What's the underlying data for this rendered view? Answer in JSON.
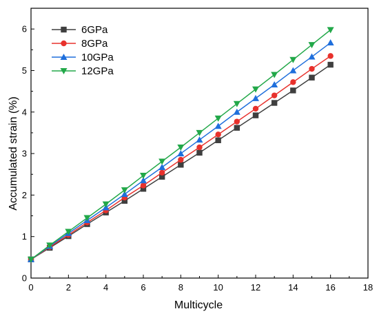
{
  "chart_data": {
    "type": "line",
    "xlabel": "Multicycle",
    "ylabel": "Accumulated strain (%)",
    "xlim": [
      0,
      18
    ],
    "ylim": [
      0,
      6.5
    ],
    "xticks": [
      0,
      2,
      4,
      6,
      8,
      10,
      12,
      14,
      16,
      18
    ],
    "yticks": [
      0,
      1,
      2,
      3,
      4,
      5,
      6
    ],
    "grid": false,
    "legend_position": "top-left",
    "x": [
      0,
      1,
      2,
      3,
      4,
      5,
      6,
      7,
      8,
      9,
      10,
      11,
      12,
      13,
      14,
      15,
      16
    ],
    "series": [
      {
        "name": "6GPa",
        "marker": "square",
        "color": "#3f3f3f",
        "values": [
          0.45,
          0.73,
          1.01,
          1.3,
          1.58,
          1.86,
          2.15,
          2.44,
          2.73,
          3.02,
          3.32,
          3.62,
          3.92,
          4.22,
          4.52,
          4.83,
          5.14
        ]
      },
      {
        "name": "8GPa",
        "marker": "circle",
        "color": "#e8312c",
        "values": [
          0.45,
          0.75,
          1.04,
          1.34,
          1.63,
          1.94,
          2.23,
          2.54,
          2.85,
          3.15,
          3.46,
          3.77,
          4.08,
          4.4,
          4.72,
          5.04,
          5.35
        ]
      },
      {
        "name": "10GPa",
        "marker": "triangle-up",
        "color": "#1f6fdc",
        "values": [
          0.45,
          0.77,
          1.08,
          1.39,
          1.7,
          2.02,
          2.35,
          2.67,
          3.0,
          3.33,
          3.66,
          4.0,
          4.33,
          4.66,
          5.0,
          5.33,
          5.67
        ]
      },
      {
        "name": "12GPa",
        "marker": "triangle-down",
        "color": "#22a849",
        "values": [
          0.45,
          0.79,
          1.12,
          1.45,
          1.78,
          2.12,
          2.47,
          2.81,
          3.15,
          3.5,
          3.85,
          4.2,
          4.55,
          4.9,
          5.26,
          5.62,
          5.98
        ]
      }
    ]
  }
}
